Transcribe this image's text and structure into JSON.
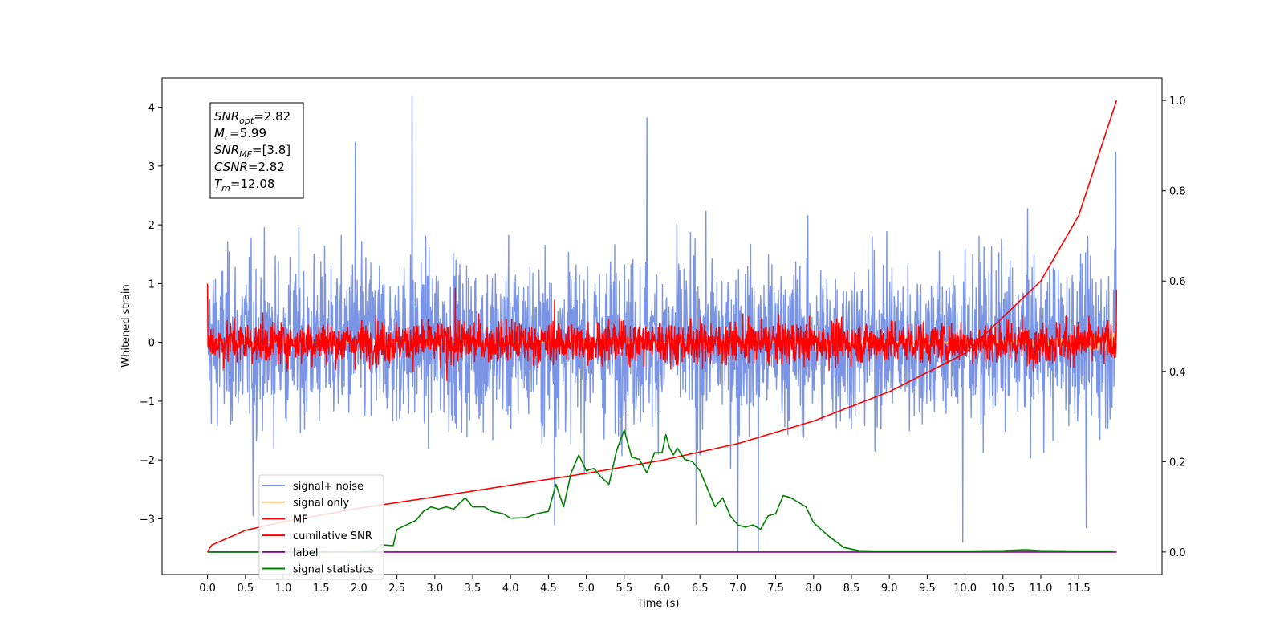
{
  "chart_data": {
    "type": "line",
    "xlabel": "Time (s)",
    "ylabel": "Whitened strain",
    "xlim": [
      -0.6,
      12.6
    ],
    "ylim": [
      -3.95,
      4.5
    ],
    "y2lim": [
      -0.05,
      1.05
    ],
    "x_ticks": [
      "0.0",
      "0.5",
      "1.0",
      "1.5",
      "2.0",
      "2.5",
      "3.0",
      "3.5",
      "4.0",
      "4.5",
      "5.0",
      "5.5",
      "6.0",
      "6.5",
      "7.0",
      "7.5",
      "8.0",
      "8.5",
      "9.0",
      "9.5",
      "10.0",
      "10.5",
      "11.0",
      "11.5"
    ],
    "y_ticks": [
      "−3",
      "−2",
      "−1",
      "0",
      "1",
      "2",
      "3",
      "4"
    ],
    "y2_ticks": [
      "0.0",
      "0.2",
      "0.4",
      "0.6",
      "0.8",
      "1.0"
    ],
    "grid": false,
    "legend_position": "lower-left",
    "info_box": [
      {
        "var": "SNR",
        "sub": "opt",
        "value": "=2.82"
      },
      {
        "var": "M",
        "sub": "c",
        "value": "=5.99"
      },
      {
        "var": "SNR",
        "sub": "MF",
        "value": "=[3.8]"
      },
      {
        "var": "CSNR",
        "sub": "",
        "value": "=2.82"
      },
      {
        "var": "T",
        "sub": "m",
        "value": "=12.08"
      }
    ],
    "series": [
      {
        "name": "signal+ noise",
        "color": "#7b95e6",
        "axis": "left",
        "kind": "noise",
        "center": 0.0,
        "std": 1.0,
        "x_range": [
          0.0,
          12.0
        ],
        "spikes": [
          [
            2.7,
            4.18
          ],
          [
            5.8,
            3.82
          ],
          [
            11.99,
            3.23
          ],
          [
            1.95,
            3.4
          ],
          [
            9.97,
            -3.4
          ],
          [
            7.0,
            -3.55
          ],
          [
            7.27,
            -3.55
          ],
          [
            4.58,
            -3.1
          ],
          [
            6.45,
            -3.1
          ],
          [
            11.6,
            -3.15
          ],
          [
            0.6,
            -2.95
          ]
        ]
      },
      {
        "name": "signal only",
        "color": "#f5c26b",
        "axis": "left",
        "kind": "chirp",
        "x": [
          0.0,
          6.0,
          10.0,
          11.0,
          11.5,
          11.8,
          12.0
        ],
        "y": [
          0.0,
          0.0,
          0.02,
          0.05,
          0.09,
          0.15,
          0.2
        ]
      },
      {
        "name": "MF",
        "color": "#ff0000",
        "axis": "left",
        "kind": "noise",
        "center": 0.0,
        "std": 0.25,
        "x_range": [
          0.0,
          12.0
        ],
        "spikes": [
          [
            0.0,
            1.0
          ],
          [
            12.0,
            0.9
          ],
          [
            3.27,
            0.92
          ],
          [
            3.16,
            -0.65
          ],
          [
            4.58,
            0.72
          ]
        ]
      },
      {
        "name": "cumilative SNR",
        "color": "#ff0000",
        "axis": "right",
        "x": [
          0.0,
          0.05,
          0.5,
          1.0,
          2.0,
          3.0,
          4.0,
          5.0,
          6.0,
          7.0,
          8.0,
          9.0,
          10.0,
          11.0,
          11.5,
          12.0
        ],
        "y": [
          0.0,
          0.015,
          0.048,
          0.067,
          0.097,
          0.122,
          0.148,
          0.174,
          0.203,
          0.24,
          0.29,
          0.355,
          0.44,
          0.6,
          0.745,
          1.0
        ]
      },
      {
        "name": "label",
        "color": "#800080",
        "axis": "right",
        "x": [
          0.0,
          12.0
        ],
        "y": [
          0.0,
          0.0
        ]
      },
      {
        "name": "signal statistics",
        "color": "#008000",
        "axis": "right",
        "x": [
          0.0,
          0.5,
          1.0,
          1.5,
          2.0,
          2.2,
          2.3,
          2.45,
          2.5,
          2.6,
          2.75,
          2.85,
          2.95,
          3.05,
          3.15,
          3.25,
          3.4,
          3.5,
          3.65,
          3.75,
          3.9,
          4.0,
          4.2,
          4.35,
          4.5,
          4.6,
          4.7,
          4.8,
          4.9,
          5.0,
          5.1,
          5.2,
          5.3,
          5.4,
          5.5,
          5.6,
          5.7,
          5.8,
          5.9,
          6.0,
          6.05,
          6.1,
          6.15,
          6.2,
          6.3,
          6.4,
          6.5,
          6.6,
          6.7,
          6.8,
          6.9,
          7.0,
          7.1,
          7.2,
          7.3,
          7.4,
          7.5,
          7.6,
          7.7,
          7.8,
          7.9,
          8.0,
          8.2,
          8.4,
          8.6,
          8.8,
          9.0,
          10.0,
          10.5,
          10.8,
          11.0,
          11.5,
          11.95
        ],
        "y": [
          0.0,
          0.0,
          0.0,
          0.0,
          0.001,
          0.003,
          0.016,
          0.014,
          0.05,
          0.058,
          0.07,
          0.09,
          0.1,
          0.095,
          0.1,
          0.095,
          0.12,
          0.1,
          0.1,
          0.09,
          0.085,
          0.075,
          0.076,
          0.085,
          0.09,
          0.15,
          0.1,
          0.175,
          0.215,
          0.18,
          0.185,
          0.165,
          0.15,
          0.225,
          0.27,
          0.21,
          0.205,
          0.175,
          0.22,
          0.22,
          0.26,
          0.23,
          0.215,
          0.23,
          0.205,
          0.2,
          0.18,
          0.14,
          0.1,
          0.12,
          0.08,
          0.06,
          0.055,
          0.06,
          0.05,
          0.08,
          0.085,
          0.125,
          0.12,
          0.11,
          0.1,
          0.065,
          0.035,
          0.01,
          0.003,
          0.002,
          0.002,
          0.002,
          0.003,
          0.005,
          0.003,
          0.002,
          0.002
        ]
      }
    ]
  }
}
